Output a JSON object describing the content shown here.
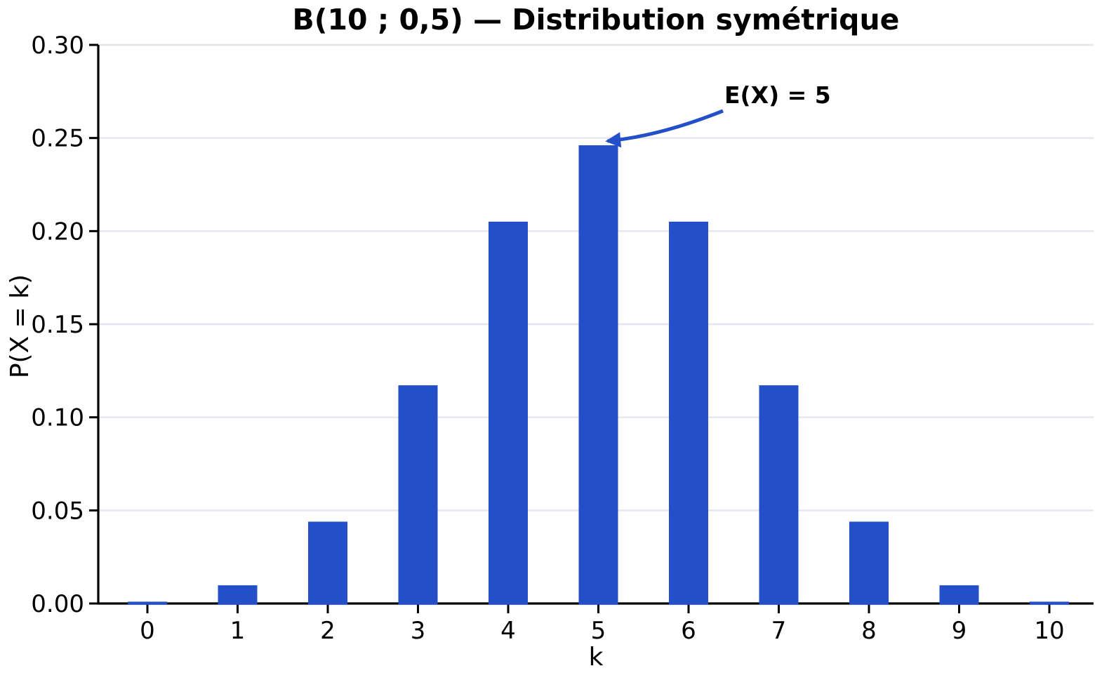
{
  "chart_data": {
    "type": "bar",
    "title": "B(10 ; 0,5) — Distribution symétrique",
    "xlabel": "k",
    "ylabel": "P(X = k)",
    "categories": [
      0,
      1,
      2,
      3,
      4,
      5,
      6,
      7,
      8,
      9,
      10
    ],
    "values": [
      0.000977,
      0.009766,
      0.043945,
      0.117188,
      0.205078,
      0.246094,
      0.205078,
      0.117188,
      0.043945,
      0.009766,
      0.000977
    ],
    "ylim": [
      0,
      0.3
    ],
    "yticks": [
      {
        "value": 0.0,
        "label": "0.00"
      },
      {
        "value": 0.05,
        "label": "0.05"
      },
      {
        "value": 0.1,
        "label": "0.10"
      },
      {
        "value": 0.15,
        "label": "0.15"
      },
      {
        "value": 0.2,
        "label": "0.20"
      },
      {
        "value": 0.25,
        "label": "0.25"
      },
      {
        "value": 0.3,
        "label": "0.30"
      }
    ],
    "grid": "horizontal",
    "legend": "none",
    "annotation": {
      "text": "E(X) = 5",
      "target_category": 5,
      "target_value": 0.246094
    },
    "colors": {
      "bar": "#2350c8",
      "annotation": "#2350c8",
      "grid": "#e6e6ee",
      "axis": "#000000",
      "text": "#000000"
    }
  }
}
